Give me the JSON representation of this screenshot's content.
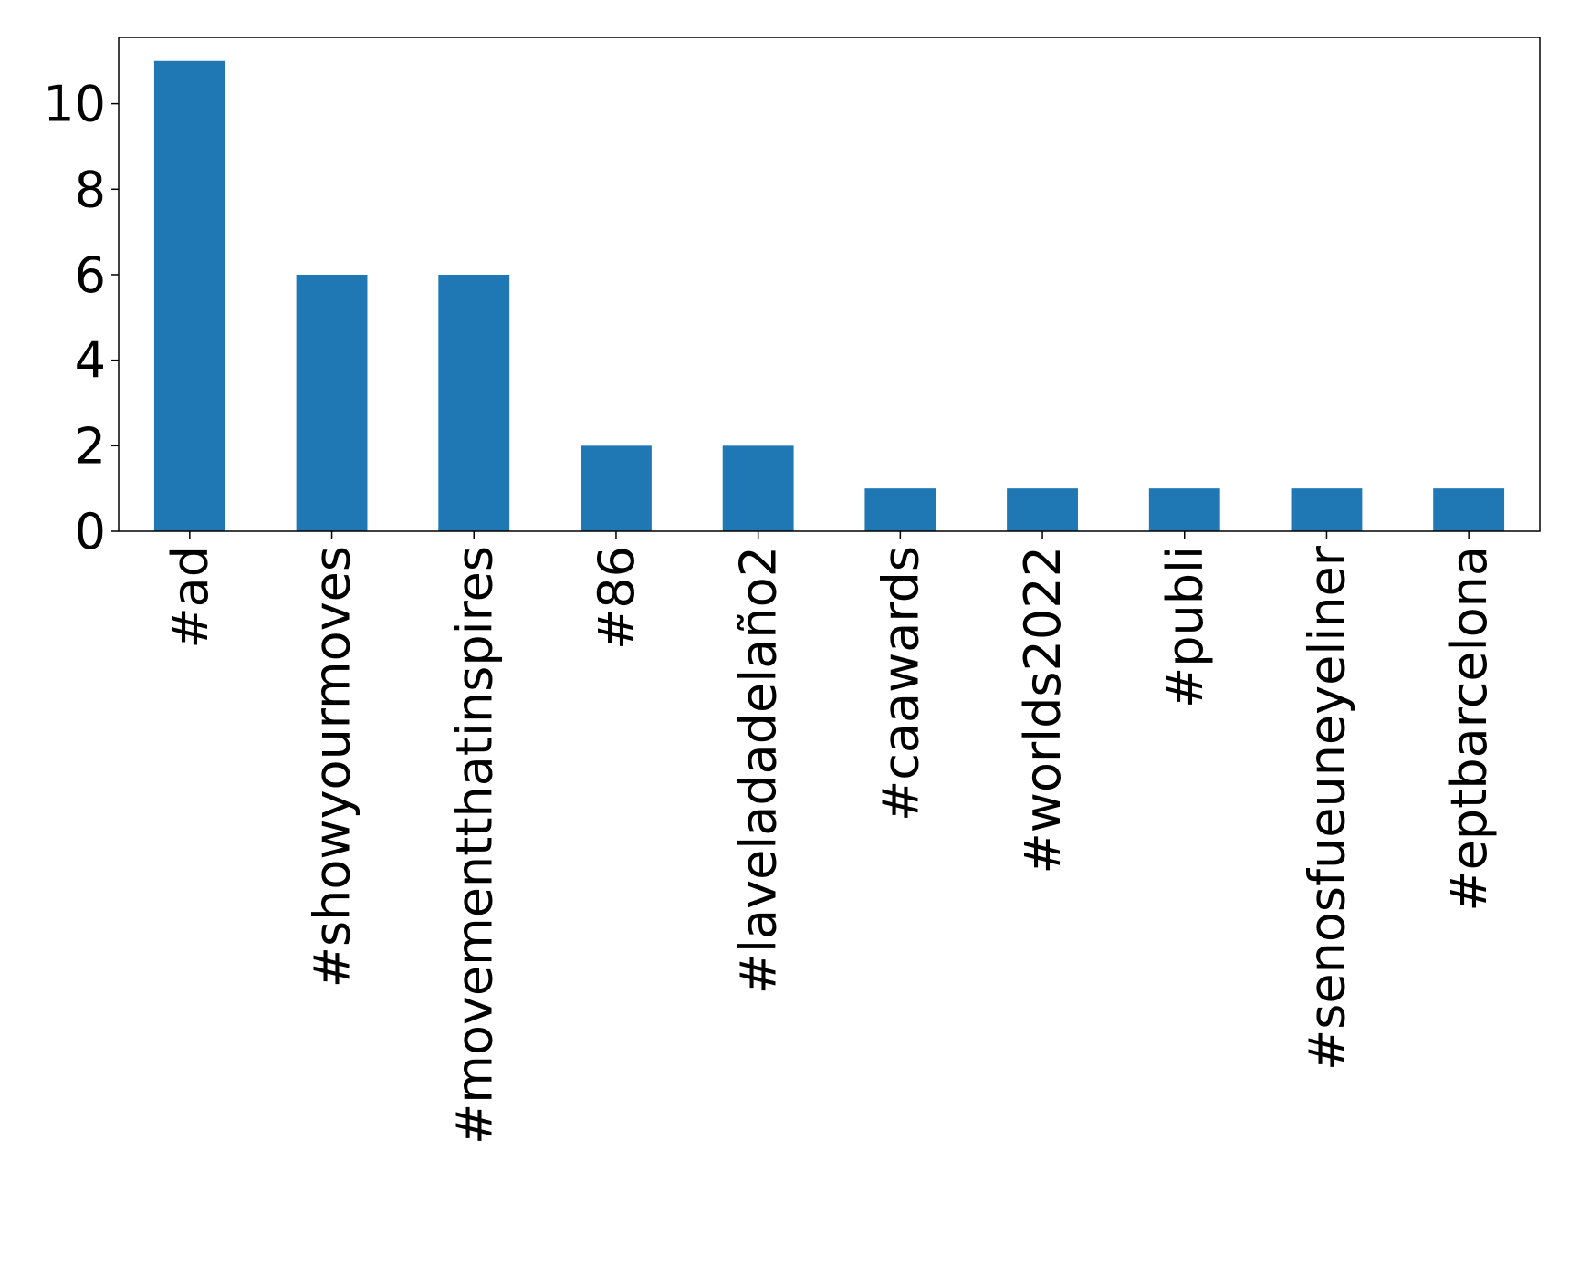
{
  "chart_data": {
    "type": "bar",
    "categories": [
      "#ad",
      "#showyourmoves",
      "#movementthatinspires",
      "#86",
      "#laveladadelaño2",
      "#caawards",
      "#worlds2022",
      "#publi",
      "#senosfueuneyeliner",
      "#eptbarcelona"
    ],
    "values": [
      11,
      6,
      6,
      2,
      2,
      1,
      1,
      1,
      1,
      1
    ],
    "color": "#1f77b4",
    "ylim": [
      0,
      11.55
    ],
    "yticks": [
      0,
      2,
      4,
      6,
      8,
      10
    ],
    "grid": false
  }
}
